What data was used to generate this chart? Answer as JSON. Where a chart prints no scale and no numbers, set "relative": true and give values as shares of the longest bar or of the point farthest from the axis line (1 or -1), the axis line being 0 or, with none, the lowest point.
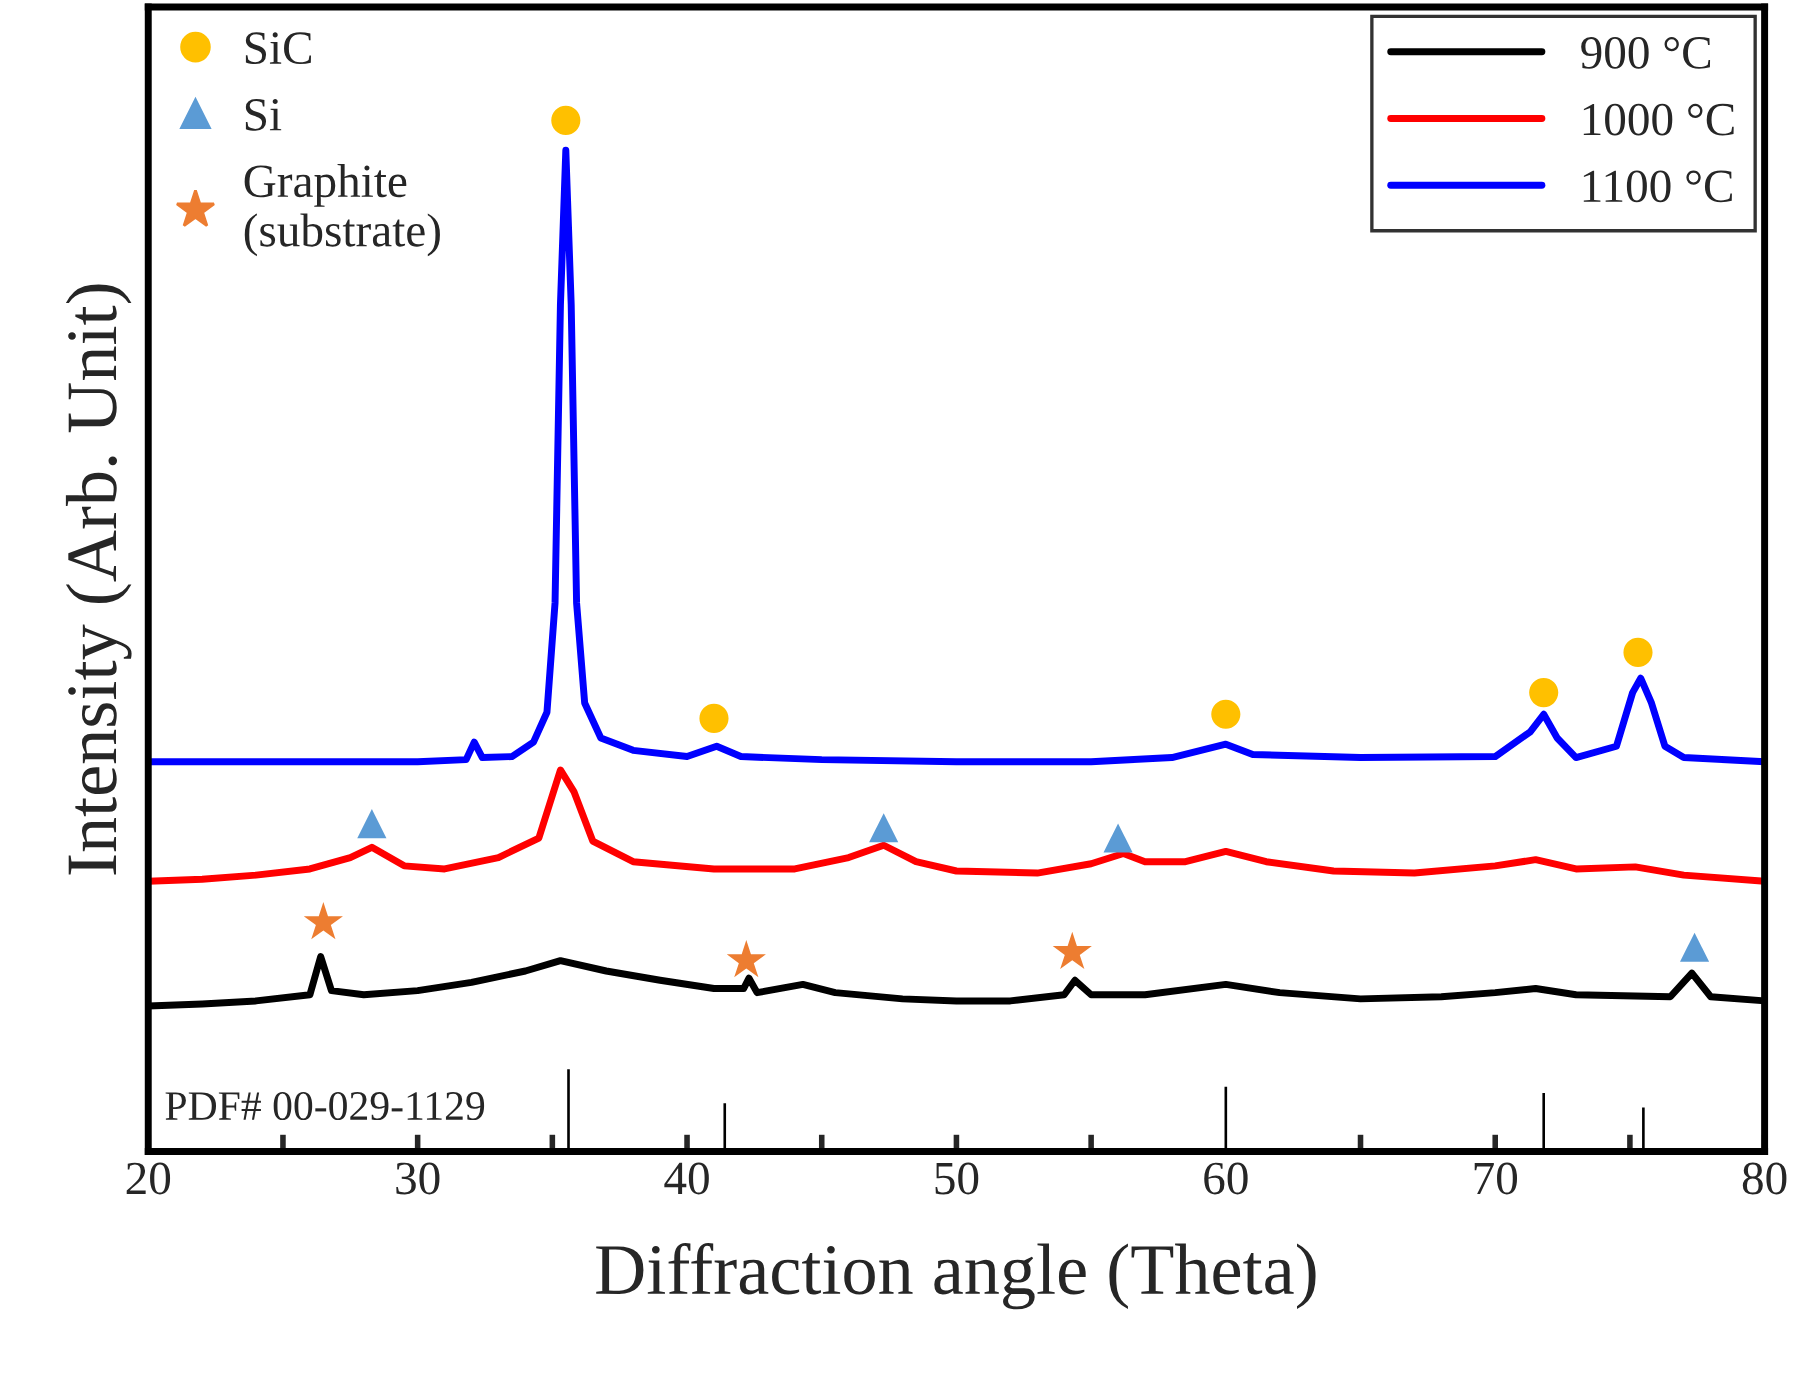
{
  "chart_data": {
    "type": "line",
    "relative": true,
    "xlabel": "Diffraction angle (Theta)",
    "ylabel": "Intensity (Arb. Unit)",
    "xlim": [
      20,
      80
    ],
    "xticks": [
      20,
      {
        "value": 25,
        "label": null
      },
      30,
      {
        "value": 35,
        "label": null
      },
      40,
      {
        "value": 45,
        "label": null
      },
      50,
      {
        "value": 55,
        "label": null
      },
      60,
      {
        "value": 65,
        "label": null
      },
      70,
      {
        "value": 75,
        "label": null
      },
      80
    ],
    "legend": "top right",
    "grid": false,
    "line_style": "solid",
    "annotations": [
      "PDF# 00-029-1129"
    ],
    "series": [
      {
        "name": "900 °C",
        "color": "#000000",
        "x": [
          20,
          22,
          24,
          26,
          26.4,
          26.8,
          28,
          30,
          32,
          34,
          35.3,
          37,
          39,
          41,
          42.1,
          42.3,
          42.6,
          44.3,
          45.5,
          48,
          50,
          52,
          54,
          54.4,
          55,
          57,
          60,
          62,
          65,
          68,
          70,
          71.5,
          73,
          76.5,
          77.3,
          78,
          80
        ],
        "values": [
          0.141,
          0.143,
          0.146,
          0.152,
          0.189,
          0.156,
          0.152,
          0.156,
          0.164,
          0.175,
          0.185,
          0.175,
          0.166,
          0.158,
          0.158,
          0.168,
          0.154,
          0.162,
          0.154,
          0.148,
          0.146,
          0.146,
          0.152,
          0.166,
          0.152,
          0.152,
          0.162,
          0.154,
          0.148,
          0.15,
          0.154,
          0.158,
          0.152,
          0.15,
          0.173,
          0.15,
          0.146
        ]
      },
      {
        "name": "1000 °C",
        "color": "#ff0000",
        "x": [
          20,
          22,
          24,
          26,
          27.5,
          28.3,
          29.5,
          31,
          33,
          34.5,
          35.3,
          35.8,
          36.5,
          38,
          41,
          44,
          46,
          47.3,
          48.5,
          50,
          53,
          55,
          56.2,
          57,
          58.5,
          60,
          61.5,
          64,
          67,
          70,
          71.5,
          73,
          75.2,
          77,
          80
        ],
        "values": [
          0.262,
          0.264,
          0.268,
          0.274,
          0.285,
          0.295,
          0.277,
          0.274,
          0.285,
          0.304,
          0.37,
          0.349,
          0.301,
          0.281,
          0.274,
          0.274,
          0.285,
          0.297,
          0.281,
          0.272,
          0.27,
          0.279,
          0.289,
          0.281,
          0.281,
          0.291,
          0.281,
          0.272,
          0.27,
          0.277,
          0.283,
          0.274,
          0.276,
          0.268,
          0.262
        ]
      },
      {
        "name": "1100 °C",
        "color": "#0000ff",
        "x": [
          20,
          25,
          30,
          31.8,
          32.1,
          32.4,
          33.5,
          34.3,
          34.8,
          35.1,
          35.3,
          35.5,
          35.7,
          35.9,
          36.2,
          36.8,
          38,
          40,
          41.1,
          42,
          45,
          50,
          55,
          58,
          60,
          61,
          65,
          70,
          71.3,
          71.8,
          72.3,
          73,
          74.5,
          75.1,
          75.4,
          75.8,
          76.3,
          77,
          80
        ],
        "values": [
          0.378,
          0.378,
          0.378,
          0.38,
          0.397,
          0.382,
          0.383,
          0.397,
          0.426,
          0.532,
          0.821,
          0.971,
          0.821,
          0.532,
          0.435,
          0.401,
          0.389,
          0.383,
          0.393,
          0.383,
          0.38,
          0.378,
          0.378,
          0.382,
          0.395,
          0.385,
          0.382,
          0.383,
          0.407,
          0.424,
          0.401,
          0.382,
          0.393,
          0.445,
          0.459,
          0.435,
          0.393,
          0.382,
          0.378
        ]
      },
      {
        "color": "#000000",
        "type": "bar",
        "x": [
          35.6,
          41.4,
          60.0,
          71.8,
          75.5
        ],
        "values": [
          0.081,
          0.048,
          0.064,
          0.058,
          0.044
        ]
      },
      {
        "name": "SiC",
        "color": "#ffc000",
        "type": "scatter",
        "marker": "circle",
        "x": [
          35.5,
          41.0,
          60.0,
          71.8,
          75.3
        ],
        "values": [
          1.0,
          0.42,
          0.424,
          0.445,
          0.484
        ]
      },
      {
        "name": "Si",
        "color": "#5b9bd5",
        "type": "scatter",
        "marker": "triangle",
        "x": [
          28.3,
          47.3,
          56.0,
          77.4
        ],
        "values": [
          0.318,
          0.314,
          0.304,
          0.198
        ]
      },
      {
        "name": "Graphite\n(substrate)",
        "color": "#ed7d31",
        "type": "scatter",
        "marker": "star",
        "x": [
          26.5,
          42.2,
          54.3
        ],
        "values": [
          0.222,
          0.185,
          0.193
        ]
      }
    ]
  }
}
